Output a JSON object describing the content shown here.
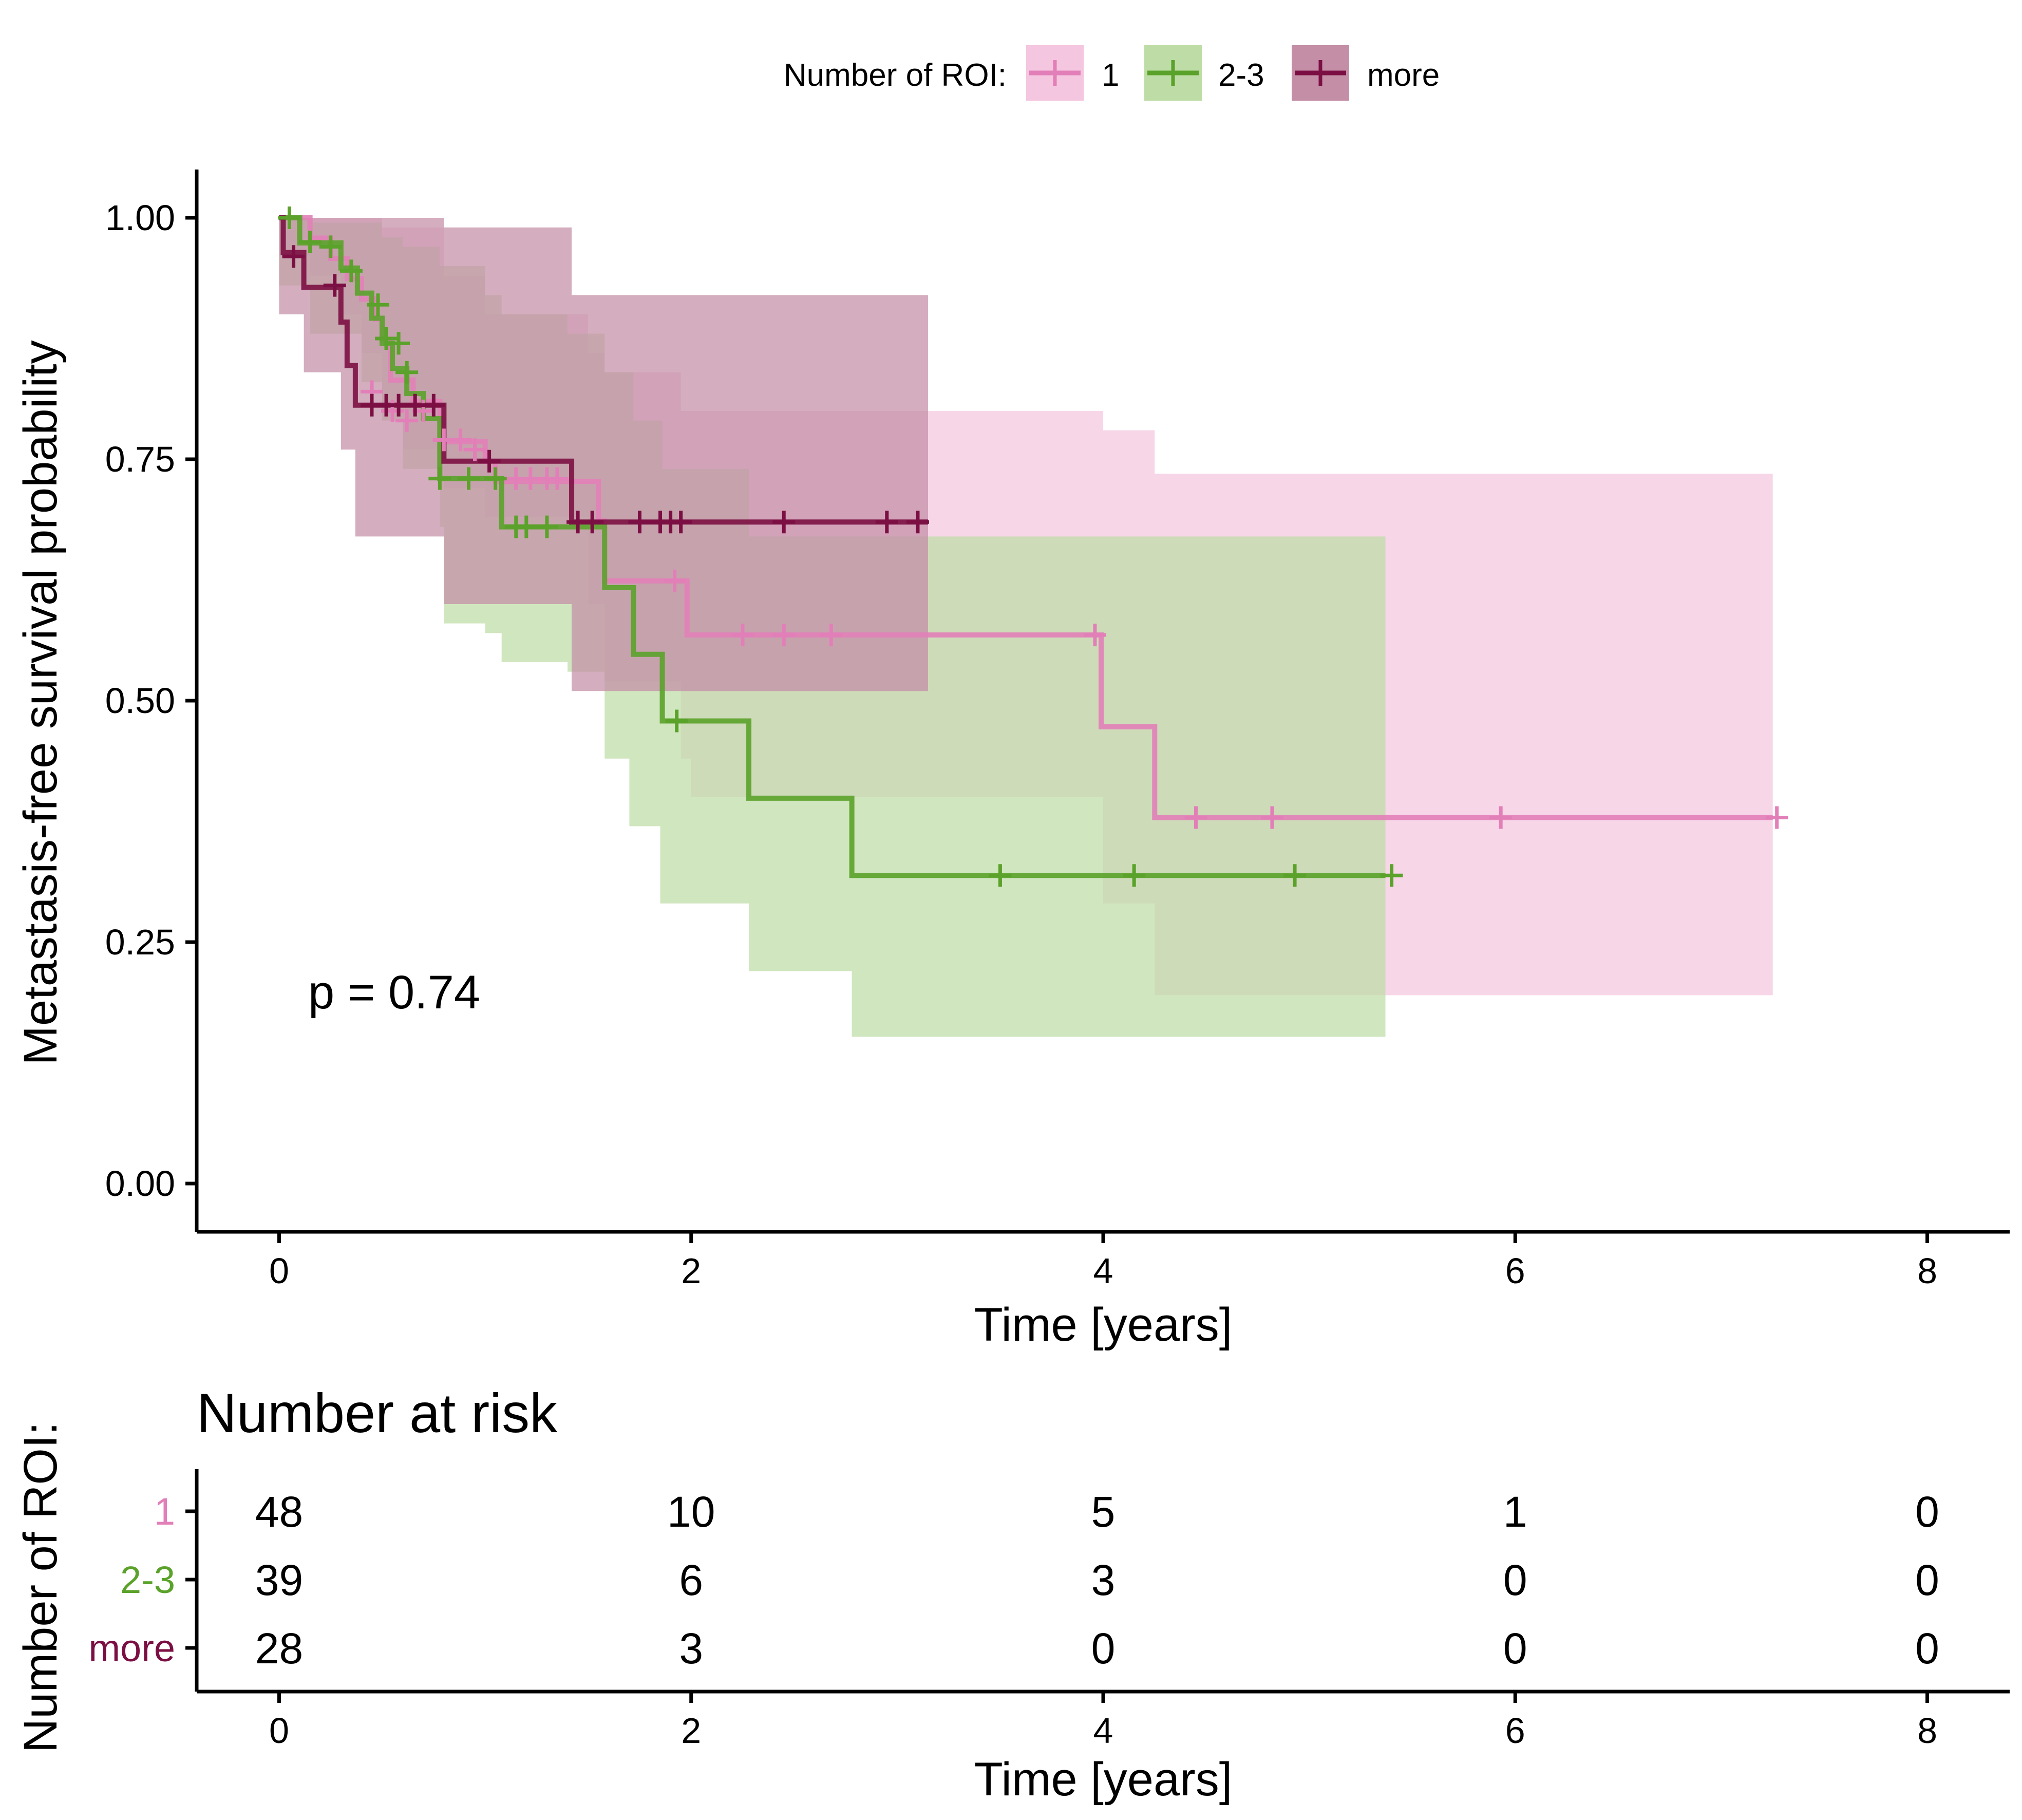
{
  "legend": {
    "title": "Number of ROI:",
    "items": [
      {
        "label": "1",
        "color": "#e27fb8",
        "band": "#f4c6df"
      },
      {
        "label": "2-3",
        "color": "#5aa22a",
        "band": "#bedda6"
      },
      {
        "label": "more",
        "color": "#7b0f43",
        "band": "#c38ea6"
      }
    ]
  },
  "chart_data": {
    "type": "line",
    "subtype": "kaplan-meier step",
    "xlabel": "Time [years]",
    "ylabel": "Metastasis-free survival probability",
    "xlim": [
      -0.4,
      8.4
    ],
    "ylim": [
      -0.05,
      1.05
    ],
    "xticks": [
      0,
      2,
      4,
      6,
      8
    ],
    "yticks": [
      0,
      0.25,
      0.5,
      0.75,
      1
    ],
    "ytick_labels": [
      "0.00",
      "0.25",
      "0.50",
      "0.75",
      "1.00"
    ],
    "annotation": "p = 0.74",
    "series": [
      {
        "name": "1",
        "steps": [
          [
            0,
            1.0
          ],
          [
            0.15,
            0.979
          ],
          [
            0.25,
            0.958
          ],
          [
            0.33,
            0.937
          ],
          [
            0.4,
            0.916
          ],
          [
            0.47,
            0.895
          ],
          [
            0.5,
            0.874
          ],
          [
            0.54,
            0.832
          ],
          [
            0.65,
            0.81
          ],
          [
            0.78,
            0.79
          ],
          [
            0.8,
            0.768
          ],
          [
            0.9,
            0.768
          ],
          [
            1.0,
            0.748
          ],
          [
            1.05,
            0.727
          ],
          [
            1.48,
            0.727
          ],
          [
            1.55,
            0.686
          ],
          [
            1.58,
            0.624
          ],
          [
            1.98,
            0.568
          ],
          [
            3.99,
            0.473
          ],
          [
            4.25,
            0.379
          ],
          [
            7.25,
            0.379
          ]
        ],
        "lower": [
          [
            0,
            0.96
          ],
          [
            0.15,
            0.94
          ],
          [
            0.3,
            0.9
          ],
          [
            0.4,
            0.86
          ],
          [
            0.5,
            0.8
          ],
          [
            0.6,
            0.76
          ],
          [
            0.8,
            0.72
          ],
          [
            1.0,
            0.69
          ],
          [
            1.5,
            0.6
          ],
          [
            1.58,
            0.52
          ],
          [
            1.95,
            0.44
          ],
          [
            2.0,
            0.4
          ],
          [
            4.0,
            0.29
          ],
          [
            4.25,
            0.195
          ],
          [
            7.25,
            0.195
          ]
        ],
        "upper": [
          [
            0,
            1.0
          ],
          [
            0.5,
            0.99
          ],
          [
            0.8,
            0.94
          ],
          [
            1.0,
            0.9
          ],
          [
            1.5,
            0.86
          ],
          [
            1.58,
            0.84
          ],
          [
            1.95,
            0.8
          ],
          [
            4.0,
            0.78
          ],
          [
            4.25,
            0.735
          ],
          [
            7.25,
            0.735
          ]
        ],
        "censored": [
          [
            0.45,
            0.82
          ],
          [
            0.55,
            0.8
          ],
          [
            0.62,
            0.79
          ],
          [
            0.7,
            0.8
          ],
          [
            0.8,
            0.77
          ],
          [
            0.88,
            0.77
          ],
          [
            0.95,
            0.76
          ],
          [
            1.15,
            0.73
          ],
          [
            1.22,
            0.73
          ],
          [
            1.3,
            0.73
          ],
          [
            1.35,
            0.73
          ],
          [
            1.92,
            0.624
          ],
          [
            2.25,
            0.568
          ],
          [
            2.45,
            0.568
          ],
          [
            2.68,
            0.568
          ],
          [
            3.96,
            0.568
          ],
          [
            4.45,
            0.379
          ],
          [
            4.82,
            0.379
          ],
          [
            5.93,
            0.379
          ],
          [
            7.27,
            0.379
          ]
        ]
      },
      {
        "name": "2-3",
        "steps": [
          [
            0,
            1.0
          ],
          [
            0.1,
            0.974
          ],
          [
            0.3,
            0.948
          ],
          [
            0.38,
            0.922
          ],
          [
            0.45,
            0.896
          ],
          [
            0.5,
            0.87
          ],
          [
            0.55,
            0.844
          ],
          [
            0.62,
            0.818
          ],
          [
            0.7,
            0.792
          ],
          [
            0.78,
            0.73
          ],
          [
            1.0,
            0.73
          ],
          [
            1.08,
            0.68
          ],
          [
            1.55,
            0.68
          ],
          [
            1.58,
            0.617
          ],
          [
            1.72,
            0.548
          ],
          [
            1.86,
            0.479
          ],
          [
            2.28,
            0.399
          ],
          [
            2.78,
            0.319
          ],
          [
            5.37,
            0.319
          ]
        ],
        "lower": [
          [
            0,
            0.93
          ],
          [
            0.15,
            0.88
          ],
          [
            0.4,
            0.83
          ],
          [
            0.5,
            0.79
          ],
          [
            0.6,
            0.74
          ],
          [
            0.78,
            0.68
          ],
          [
            0.8,
            0.58
          ],
          [
            1.0,
            0.57
          ],
          [
            1.08,
            0.54
          ],
          [
            1.4,
            0.53
          ],
          [
            1.58,
            0.44
          ],
          [
            1.7,
            0.37
          ],
          [
            1.85,
            0.29
          ],
          [
            2.28,
            0.22
          ],
          [
            2.78,
            0.152
          ],
          [
            5.37,
            0.152
          ]
        ],
        "upper": [
          [
            0,
            1.0
          ],
          [
            0.15,
            0.995
          ],
          [
            0.5,
            0.98
          ],
          [
            0.6,
            0.97
          ],
          [
            0.78,
            0.95
          ],
          [
            1.0,
            0.92
          ],
          [
            1.08,
            0.9
          ],
          [
            1.4,
            0.88
          ],
          [
            1.58,
            0.84
          ],
          [
            1.72,
            0.79
          ],
          [
            1.86,
            0.74
          ],
          [
            2.28,
            0.67
          ],
          [
            5.37,
            0.67
          ]
        ],
        "censored": [
          [
            0.05,
            1.0
          ],
          [
            0.15,
            0.975
          ],
          [
            0.25,
            0.97
          ],
          [
            0.35,
            0.945
          ],
          [
            0.48,
            0.91
          ],
          [
            0.52,
            0.875
          ],
          [
            0.58,
            0.87
          ],
          [
            0.62,
            0.84
          ],
          [
            0.78,
            0.73
          ],
          [
            0.92,
            0.73
          ],
          [
            1.05,
            0.73
          ],
          [
            1.15,
            0.68
          ],
          [
            1.2,
            0.68
          ],
          [
            1.3,
            0.68
          ],
          [
            1.93,
            0.479
          ],
          [
            3.5,
            0.319
          ],
          [
            4.15,
            0.319
          ],
          [
            4.93,
            0.319
          ],
          [
            5.4,
            0.319
          ]
        ]
      },
      {
        "name": "more",
        "steps": [
          [
            0,
            1.0
          ],
          [
            0.02,
            0.964
          ],
          [
            0.12,
            0.928
          ],
          [
            0.3,
            0.892
          ],
          [
            0.33,
            0.847
          ],
          [
            0.37,
            0.806
          ],
          [
            0.8,
            0.748
          ],
          [
            1.42,
            0.685
          ],
          [
            3.15,
            0.685
          ]
        ],
        "lower": [
          [
            0,
            0.9
          ],
          [
            0.12,
            0.84
          ],
          [
            0.3,
            0.76
          ],
          [
            0.37,
            0.67
          ],
          [
            0.8,
            0.6
          ],
          [
            1.42,
            0.51
          ],
          [
            3.15,
            0.51
          ]
        ],
        "upper": [
          [
            0,
            1.0
          ],
          [
            0.8,
            0.99
          ],
          [
            1.42,
            0.95
          ],
          [
            1.42,
            0.92
          ],
          [
            3.15,
            0.92
          ]
        ],
        "censored": [
          [
            0.07,
            0.96
          ],
          [
            0.27,
            0.93
          ],
          [
            0.45,
            0.806
          ],
          [
            0.52,
            0.806
          ],
          [
            0.58,
            0.806
          ],
          [
            0.66,
            0.806
          ],
          [
            0.75,
            0.806
          ],
          [
            1.02,
            0.748
          ],
          [
            1.45,
            0.685
          ],
          [
            1.52,
            0.685
          ],
          [
            1.75,
            0.685
          ],
          [
            1.85,
            0.685
          ],
          [
            1.9,
            0.685
          ],
          [
            1.95,
            0.685
          ],
          [
            2.45,
            0.685
          ],
          [
            2.95,
            0.685
          ],
          [
            3.1,
            0.685
          ]
        ]
      }
    ],
    "risk_table": {
      "title": "Number at risk",
      "ylabel": "Number of ROI:",
      "xlabel": "Time [years]",
      "times": [
        0,
        2,
        4,
        6,
        8
      ],
      "rows": [
        {
          "name": "1",
          "counts": [
            48,
            10,
            5,
            1,
            0
          ]
        },
        {
          "name": "2-3",
          "counts": [
            39,
            6,
            3,
            0,
            0
          ]
        },
        {
          "name": "more",
          "counts": [
            28,
            3,
            0,
            0,
            0
          ]
        }
      ]
    }
  }
}
